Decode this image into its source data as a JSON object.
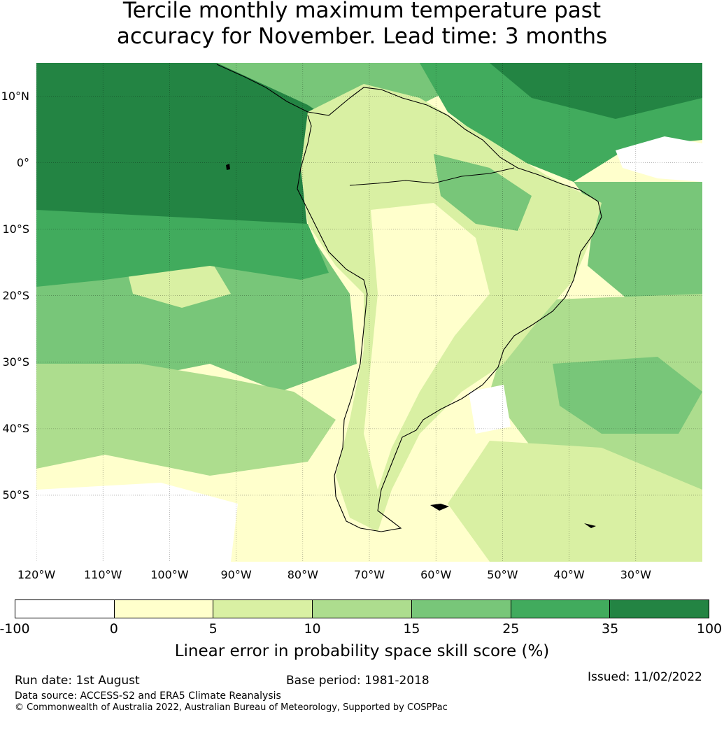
{
  "title": {
    "line1": "Tercile monthly maximum temperature past",
    "line2": "accuracy for November. Lead time: 3 months"
  },
  "map": {
    "lat_labels": [
      "10°N",
      "0°",
      "10°S",
      "20°S",
      "30°S",
      "40°S",
      "50°S"
    ],
    "lat_values": [
      10,
      0,
      -10,
      -20,
      -30,
      -40,
      -50
    ],
    "lon_labels": [
      "120°W",
      "110°W",
      "100°W",
      "90°W",
      "80°W",
      "70°W",
      "60°W",
      "50°W",
      "40°W",
      "30°W"
    ],
    "lon_values": [
      -120,
      -110,
      -100,
      -90,
      -80,
      -70,
      -60,
      -50,
      -40,
      -30
    ],
    "lat_range": [
      -60,
      15
    ],
    "lon_range": [
      -120,
      -20
    ],
    "coastline_color": "#000000"
  },
  "colorbar": {
    "ticks": [
      "-100",
      "0",
      "5",
      "10",
      "15",
      "25",
      "35",
      "100"
    ],
    "bounds": [
      -100,
      0,
      5,
      10,
      15,
      25,
      35,
      100
    ],
    "colors": [
      "#ffffff",
      "#ffffcc",
      "#d9f0a3",
      "#addd8e",
      "#78c679",
      "#41ab5d",
      "#238443"
    ],
    "label": "Linear error in probability space skill score (%)"
  },
  "footer": {
    "run_date": "Run date: 1st August",
    "base_period": "Base period: 1981-2018",
    "issued": "Issued: 11/02/2022",
    "data_source": "Data source: ACCESS-S2 and ERA5 Climate Reanalysis",
    "copyright": "© Commonwealth of Australia 2022, Australian Bureau of Meteorology, Supported by COSPPac"
  }
}
